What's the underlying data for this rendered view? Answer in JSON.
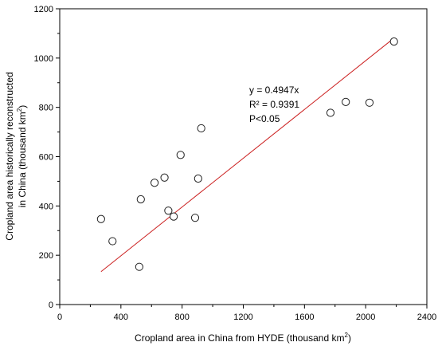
{
  "chart_data": {
    "type": "scatter",
    "xlabel": "Cropland area in China from HYDE (thousand km",
    "xlabel_sup": "2",
    "xlabel_end": ")",
    "ylabel_line1": "Cropland area historically reconstructed",
    "ylabel_line2": "in China (thousand km",
    "ylabel_sup": "2",
    "ylabel_end": ")",
    "xlim": [
      0,
      2400
    ],
    "ylim": [
      0,
      1200
    ],
    "xticks": [
      0,
      400,
      800,
      1200,
      1600,
      2000,
      2400
    ],
    "yticks": [
      0,
      200,
      400,
      600,
      800,
      1000,
      1200
    ],
    "grid": false,
    "points": [
      {
        "x": 270,
        "y": 347
      },
      {
        "x": 345,
        "y": 257
      },
      {
        "x": 520,
        "y": 153
      },
      {
        "x": 530,
        "y": 427
      },
      {
        "x": 620,
        "y": 494
      },
      {
        "x": 685,
        "y": 515
      },
      {
        "x": 710,
        "y": 381
      },
      {
        "x": 745,
        "y": 357
      },
      {
        "x": 790,
        "y": 607
      },
      {
        "x": 885,
        "y": 352
      },
      {
        "x": 905,
        "y": 511
      },
      {
        "x": 925,
        "y": 715
      },
      {
        "x": 1770,
        "y": 778
      },
      {
        "x": 1870,
        "y": 822
      },
      {
        "x": 2025,
        "y": 819
      },
      {
        "x": 2185,
        "y": 1067
      }
    ],
    "fit": {
      "slope": 0.4947,
      "x_from": 270,
      "x_to": 2185,
      "color": "#cc2222"
    },
    "marker_color": "#222222",
    "annotations": {
      "equation": "y = 0.4947x",
      "r2": "R² = 0.9391",
      "p": "P<0.05"
    }
  }
}
